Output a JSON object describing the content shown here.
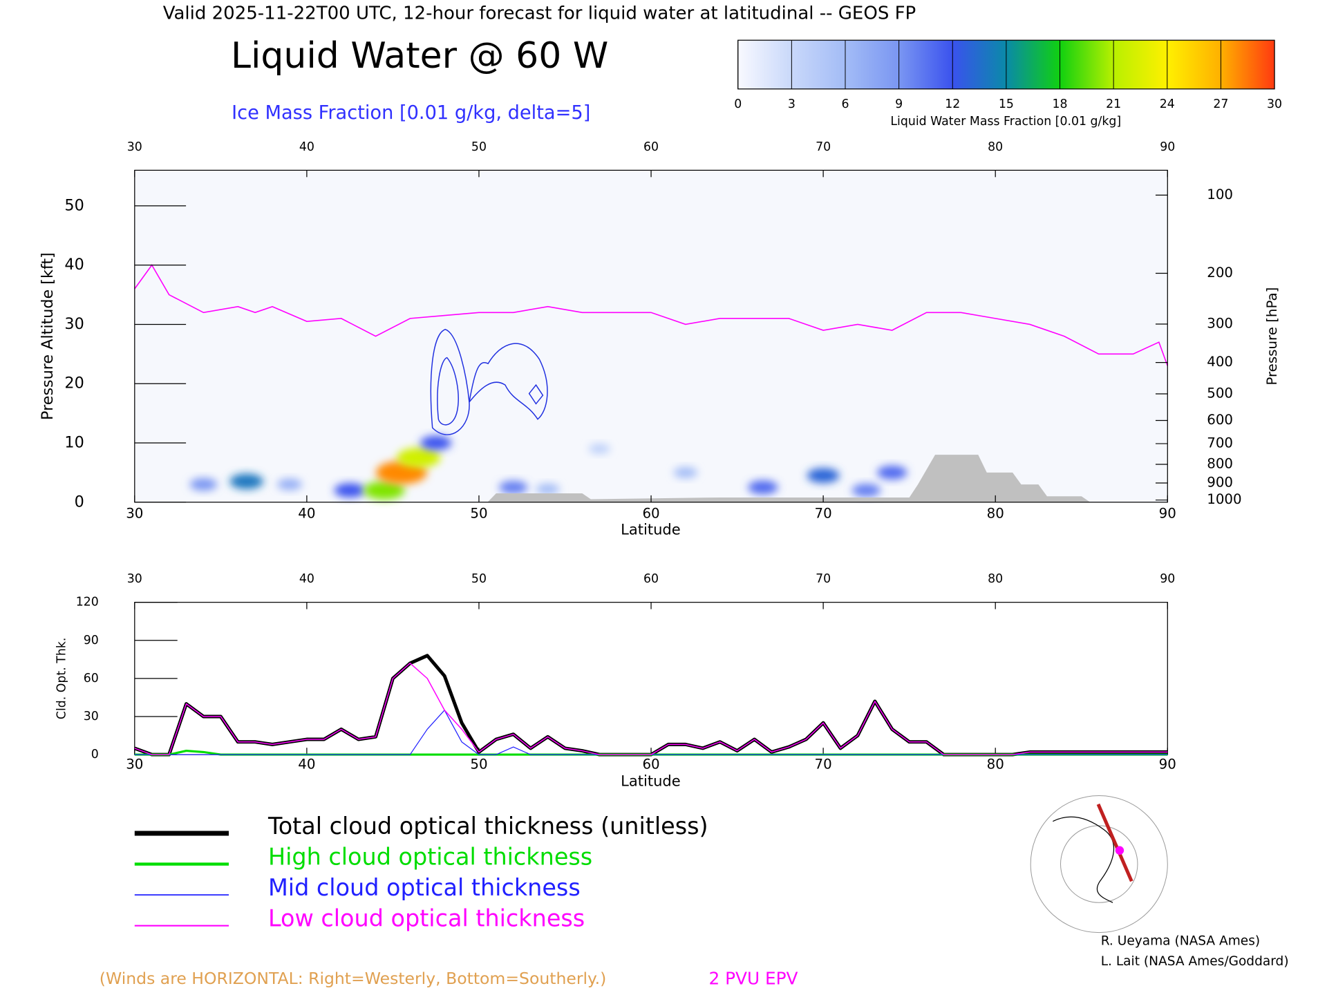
{
  "header": {
    "title": "Valid 2025-11-22T00 UTC, 12-hour forecast for liquid water at latitudinal -- GEOS FP"
  },
  "chart_data": [
    {
      "type": "cross-section",
      "title": "Liquid Water @ 60 W",
      "subtitle": "Ice Mass Fraction [0.01 g/kg, delta=5]",
      "xlabel": "Latitude",
      "ylabel": "Pressure Altitude [kft]",
      "y2label": "Pressure [hPa]",
      "xlim": [
        30,
        90
      ],
      "xticks": [
        30,
        40,
        50,
        60,
        70,
        80,
        90
      ],
      "ylim": [
        0,
        56
      ],
      "yticks": [
        0,
        10,
        20,
        30,
        40,
        50
      ],
      "y2ticks": [
        100,
        200,
        300,
        400,
        500,
        600,
        700,
        800,
        900,
        1000
      ],
      "colorbar": {
        "label": "Liquid Water Mass Fraction [0.01 g/kg]",
        "lim": [
          0,
          30
        ],
        "ticks": [
          0,
          3,
          6,
          9,
          12,
          15,
          18,
          21,
          24,
          27,
          30
        ],
        "colors": [
          "#f8f9ff",
          "#c9d8fa",
          "#a3bcf6",
          "#7a96f2",
          "#3a52ee",
          "#0a8aa8",
          "#10d010",
          "#b8f000",
          "#fff000",
          "#ffb000",
          "#ff3a10"
        ]
      },
      "liquid_water": {
        "x": [
          34,
          36.5,
          39,
          42.5,
          44.5,
          45.5,
          46.5,
          47.5,
          52,
          54,
          57,
          62,
          66.5,
          70,
          72.5,
          74
        ],
        "y": [
          3,
          3.5,
          3,
          2,
          2,
          5,
          7.5,
          10,
          2.5,
          2.2,
          9,
          5,
          2.5,
          4.5,
          2,
          5
        ],
        "values": [
          9,
          14,
          7,
          12,
          20,
          28,
          22,
          12,
          10,
          6,
          4,
          6,
          11,
          13,
          10,
          11
        ]
      },
      "terrain": {
        "color": "#c0c0c0",
        "x": [
          30,
          50.5,
          51,
          56,
          56.5,
          64,
          75,
          75.5,
          76.5,
          79,
          79.5,
          81,
          81.5,
          82.5,
          83,
          85,
          85.5,
          90
        ],
        "values": [
          0,
          0,
          1.5,
          1.5,
          0.5,
          0.8,
          0.8,
          3,
          8,
          8,
          5,
          5,
          3,
          3,
          1,
          1,
          0,
          0
        ]
      },
      "epv": {
        "name": "2 PVU EPV",
        "color": "#ff00ff",
        "x": [
          30,
          31,
          32,
          34,
          36,
          37,
          38,
          40,
          42,
          44,
          46,
          48,
          50,
          52,
          54,
          56,
          58,
          60,
          62,
          64,
          66,
          68,
          70,
          72,
          74,
          76,
          78,
          80,
          82,
          84,
          86,
          88,
          89.5,
          90
        ],
        "values": [
          36,
          40,
          35,
          32,
          33,
          32,
          33,
          30.5,
          31,
          28,
          31,
          31.5,
          32,
          32,
          33,
          32,
          32,
          32,
          30,
          31,
          31,
          31,
          29,
          30,
          29,
          32,
          32,
          31,
          30,
          28,
          25,
          25,
          27,
          23
        ]
      },
      "wind_note": "(Winds are HORIZONTAL: Right=Westerly, Bottom=Southerly.)"
    },
    {
      "type": "line",
      "xlabel": "Latitude",
      "ylabel": "Cld. Opt. Thk.",
      "xlim": [
        30,
        90
      ],
      "xticks": [
        30,
        40,
        50,
        60,
        70,
        80,
        90
      ],
      "ylim": [
        0,
        120
      ],
      "yticks": [
        0,
        30,
        60,
        90,
        120
      ],
      "x": [
        30,
        31,
        32,
        33,
        34,
        35,
        36,
        37,
        38,
        39,
        40,
        41,
        42,
        43,
        44,
        45,
        46,
        47,
        48,
        49,
        50,
        51,
        52,
        53,
        54,
        55,
        56,
        57,
        58,
        59,
        60,
        61,
        62,
        63,
        64,
        65,
        66,
        67,
        68,
        69,
        70,
        71,
        72,
        73,
        74,
        75,
        76,
        77,
        78,
        79,
        80,
        81,
        82,
        83,
        84,
        85,
        86,
        87,
        88,
        89,
        90
      ],
      "series": [
        {
          "name": "Total cloud optical thickness (unitless)",
          "color": "#000000",
          "width": 4,
          "values": [
            5,
            0,
            0,
            40,
            30,
            30,
            10,
            10,
            8,
            10,
            12,
            12,
            20,
            12,
            14,
            60,
            72,
            78,
            62,
            25,
            2,
            12,
            16,
            5,
            14,
            5,
            3,
            0,
            0,
            0,
            0,
            8,
            8,
            5,
            10,
            3,
            12,
            2,
            6,
            12,
            25,
            5,
            15,
            42,
            20,
            10,
            10,
            0,
            0,
            0,
            0,
            0,
            2,
            2,
            2,
            2,
            2,
            2,
            2,
            2,
            2
          ]
        },
        {
          "name": "High cloud optical thickness",
          "color": "#00dd00",
          "width": 2.5,
          "values": [
            0,
            0,
            0,
            3,
            2,
            0,
            0,
            0,
            0,
            0,
            0,
            0,
            0,
            0,
            0,
            0,
            0,
            0,
            0,
            0,
            0,
            0,
            0,
            0,
            0,
            0,
            0,
            0,
            0,
            0,
            0,
            0,
            0,
            0,
            0,
            0,
            0,
            0,
            0,
            0,
            0,
            0,
            0,
            0,
            0,
            0,
            0,
            0,
            0,
            0,
            0,
            0,
            0,
            0,
            0,
            0,
            0,
            0,
            0,
            0,
            0
          ]
        },
        {
          "name": "Mid cloud optical thickness",
          "color": "#2020ff",
          "width": 1,
          "values": [
            0,
            0,
            0,
            0,
            0,
            0,
            0,
            0,
            0,
            0,
            0,
            0,
            0,
            0,
            0,
            0,
            0,
            20,
            35,
            10,
            0,
            0,
            6,
            0,
            0,
            0,
            0,
            0,
            0,
            0,
            0,
            0,
            0,
            0,
            0,
            0,
            0,
            0,
            0,
            0,
            0,
            0,
            0,
            0,
            0,
            0,
            0,
            0,
            0,
            0,
            0,
            0,
            0,
            0,
            0,
            0,
            0,
            0,
            0,
            0,
            0
          ]
        },
        {
          "name": "Low cloud optical thickness",
          "color": "#ff00ff",
          "width": 1.2,
          "values": [
            5,
            0,
            0,
            40,
            30,
            30,
            10,
            10,
            8,
            10,
            12,
            12,
            20,
            12,
            14,
            60,
            72,
            60,
            35,
            20,
            2,
            12,
            16,
            5,
            14,
            5,
            3,
            0,
            0,
            0,
            0,
            8,
            8,
            5,
            10,
            3,
            12,
            2,
            6,
            12,
            25,
            5,
            15,
            42,
            20,
            10,
            10,
            0,
            0,
            0,
            0,
            0,
            2,
            2,
            2,
            2,
            2,
            2,
            2,
            2,
            2
          ]
        }
      ]
    }
  ],
  "credits": [
    "R. Ueyama (NASA Ames)",
    "L. Lait (NASA Ames/Goddard)"
  ]
}
